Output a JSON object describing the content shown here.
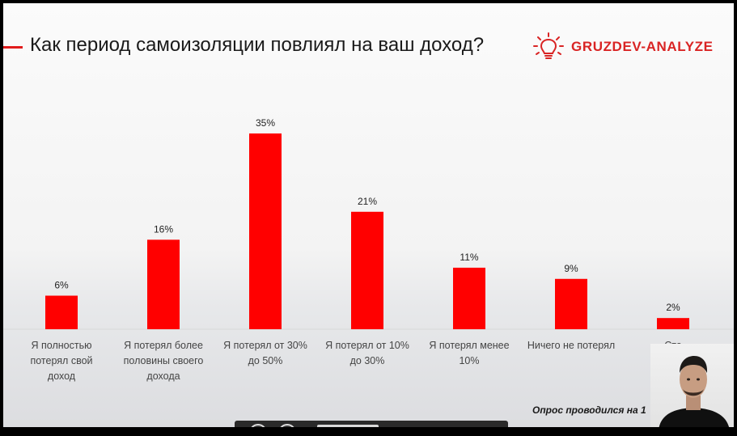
{
  "title": "Как период самоизоляции повлиял на ваш доход?",
  "brand": {
    "name": "GRUZDEV-ANALYZE",
    "icon": "lightbulb-icon",
    "color": "#d92424"
  },
  "colors": {
    "bar": "#ff0000",
    "accent": "#e11b1b"
  },
  "footnote": "Опрос проводился на 1",
  "chart_data": {
    "type": "bar",
    "categories": [
      [
        "Я полностью",
        "потерял свой",
        "доход"
      ],
      [
        "Я потерял более",
        "половины своего",
        "дохода"
      ],
      [
        "Я потерял от 30%",
        "до 50%"
      ],
      [
        "Я потерял от 10%",
        "до 30%"
      ],
      [
        "Я потерял менее",
        "10%"
      ],
      [
        "Ничего не потерял"
      ],
      [
        "Ста"
      ]
    ],
    "values": [
      6,
      16,
      35,
      21,
      11,
      9,
      2
    ],
    "value_labels": [
      "6%",
      "16%",
      "35%",
      "21%",
      "11%",
      "9%",
      "2%"
    ],
    "title": "Как период самоизоляции повлиял на ваш доход?",
    "xlabel": "",
    "ylabel": "",
    "ylim": [
      0,
      35
    ],
    "grid": false,
    "legend": "none"
  }
}
